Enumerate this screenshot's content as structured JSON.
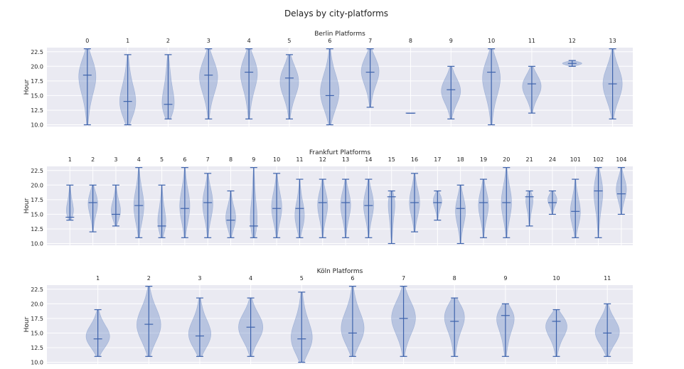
{
  "figure": {
    "title": "Delays by city-platforms"
  },
  "colors": {
    "background": "#eaeaf2",
    "grid": "#ffffff",
    "body": "#5c7fbf",
    "line": "#3e63ac"
  },
  "chart_data": [
    {
      "type": "violin",
      "title": "Berlin Platforms",
      "ylabel": "Hour",
      "ylim": [
        9.7,
        23.2
      ],
      "yticks": [
        10.0,
        12.5,
        15.0,
        17.5,
        20.0,
        22.5
      ],
      "ytick_labels": [
        "10.0",
        "12.5",
        "15.0",
        "17.5",
        "20.0",
        "22.5"
      ],
      "xtick_labels": [
        "0",
        "1",
        "2",
        "3",
        "4",
        "5",
        "6",
        "7",
        "8",
        "9",
        "10",
        "11",
        "12",
        "13"
      ],
      "violins": [
        {
          "min": 10,
          "max": 23,
          "median": 18.5,
          "peak": 19.5,
          "width": 0.48
        },
        {
          "min": 10,
          "max": 22,
          "median": 14,
          "peak": 12.5,
          "width": 0.48
        },
        {
          "min": 11,
          "max": 22,
          "median": 13.5,
          "peak": 11.5,
          "width": 0.48
        },
        {
          "min": 11,
          "max": 23,
          "median": 18.5,
          "peak": 19,
          "width": 0.48
        },
        {
          "min": 11,
          "max": 23,
          "median": 19,
          "peak": 20,
          "width": 0.48
        },
        {
          "min": 11,
          "max": 22,
          "median": 18,
          "peak": 18,
          "width": 0.48
        },
        {
          "min": 10,
          "max": 23,
          "median": 15,
          "peak": 15,
          "width": 0.48
        },
        {
          "min": 13,
          "max": 23,
          "median": 19,
          "peak": 20,
          "width": 0.48
        },
        {
          "min": 12,
          "max": 12,
          "median": 12,
          "peak": 12,
          "width": 0.24
        },
        {
          "min": 11,
          "max": 20,
          "median": 16,
          "peak": 16,
          "width": 0.48
        },
        {
          "min": 10,
          "max": 23,
          "median": 19,
          "peak": 19,
          "width": 0.48
        },
        {
          "min": 12,
          "max": 20,
          "median": 17,
          "peak": 17,
          "width": 0.48
        },
        {
          "min": 20,
          "max": 21,
          "median": 20.5,
          "peak": 20.5,
          "width": 0.48
        },
        {
          "min": 11,
          "max": 23,
          "median": 17,
          "peak": 17,
          "width": 0.48
        }
      ]
    },
    {
      "type": "violin",
      "title": "Frankfurt Platforms",
      "ylabel": "Hour",
      "ylim": [
        9.7,
        23.2
      ],
      "yticks": [
        10.0,
        12.5,
        15.0,
        17.5,
        20.0,
        22.5
      ],
      "ytick_labels": [
        "10.0",
        "12.5",
        "15.0",
        "17.5",
        "20.0",
        "22.5"
      ],
      "xtick_labels": [
        "1",
        "2",
        "3",
        "4",
        "5",
        "6",
        "7",
        "8",
        "9",
        "10",
        "11",
        "12",
        "13",
        "14",
        "15",
        "16",
        "17",
        "18",
        "19",
        "20",
        "21",
        "24",
        "101",
        "102",
        "104"
      ],
      "violins": [
        {
          "min": 14,
          "max": 20,
          "median": 14.5,
          "peak": 14.5,
          "width": 0.45
        },
        {
          "min": 12,
          "max": 20,
          "median": 17,
          "peak": 17.5,
          "width": 0.45
        },
        {
          "min": 13,
          "max": 20,
          "median": 15,
          "peak": 15,
          "width": 0.45
        },
        {
          "min": 11,
          "max": 23,
          "median": 16.5,
          "peak": 16,
          "width": 0.45
        },
        {
          "min": 11,
          "max": 20,
          "median": 13,
          "peak": 12.5,
          "width": 0.45
        },
        {
          "min": 11,
          "max": 23,
          "median": 16,
          "peak": 16,
          "width": 0.45
        },
        {
          "min": 11,
          "max": 22,
          "median": 17,
          "peak": 17,
          "width": 0.45
        },
        {
          "min": 11,
          "max": 19,
          "median": 14,
          "peak": 14,
          "width": 0.45
        },
        {
          "min": 11,
          "max": 23,
          "median": 13,
          "peak": 12,
          "width": 0.45
        },
        {
          "min": 11,
          "max": 22,
          "median": 16,
          "peak": 16,
          "width": 0.45
        },
        {
          "min": 11,
          "max": 21,
          "median": 16,
          "peak": 14,
          "width": 0.45
        },
        {
          "min": 11,
          "max": 21,
          "median": 17,
          "peak": 17,
          "width": 0.45
        },
        {
          "min": 11,
          "max": 21,
          "median": 17,
          "peak": 17,
          "width": 0.45
        },
        {
          "min": 11,
          "max": 21,
          "median": 16.5,
          "peak": 17,
          "width": 0.45
        },
        {
          "min": 10,
          "max": 19,
          "median": 18,
          "peak": 18.5,
          "width": 0.45
        },
        {
          "min": 12,
          "max": 22,
          "median": 17,
          "peak": 17,
          "width": 0.45
        },
        {
          "min": 14,
          "max": 19,
          "median": 17,
          "peak": 18,
          "width": 0.45
        },
        {
          "min": 10,
          "max": 20,
          "median": 16,
          "peak": 16,
          "width": 0.45
        },
        {
          "min": 11,
          "max": 21,
          "median": 17,
          "peak": 17,
          "width": 0.45
        },
        {
          "min": 11,
          "max": 23,
          "median": 17,
          "peak": 17,
          "width": 0.45
        },
        {
          "min": 13,
          "max": 19,
          "median": 18,
          "peak": 18.5,
          "width": 0.45
        },
        {
          "min": 15,
          "max": 19,
          "median": 17,
          "peak": 18,
          "width": 0.45
        },
        {
          "min": 11,
          "max": 21,
          "median": 15.5,
          "peak": 15,
          "width": 0.45
        },
        {
          "min": 11,
          "max": 23,
          "median": 19,
          "peak": 20,
          "width": 0.45
        },
        {
          "min": 15,
          "max": 23,
          "median": 18.5,
          "peak": 19.5,
          "width": 0.45
        }
      ]
    },
    {
      "type": "violin",
      "title": "Köln Platforms",
      "ylabel": "Hour",
      "ylim": [
        9.7,
        23.2
      ],
      "yticks": [
        10.0,
        12.5,
        15.0,
        17.5,
        20.0,
        22.5
      ],
      "ytick_labels": [
        "10.0",
        "12.5",
        "15.0",
        "17.5",
        "20.0",
        "22.5"
      ],
      "xtick_labels": [
        "1",
        "2",
        "3",
        "4",
        "5",
        "6",
        "7",
        "8",
        "9",
        "10",
        "11"
      ],
      "violins": [
        {
          "min": 11,
          "max": 19,
          "median": 14,
          "peak": 14,
          "width": 0.48
        },
        {
          "min": 11,
          "max": 23,
          "median": 16.5,
          "peak": 16,
          "width": 0.48
        },
        {
          "min": 11,
          "max": 21,
          "median": 14.5,
          "peak": 14,
          "width": 0.48
        },
        {
          "min": 11,
          "max": 21,
          "median": 16,
          "peak": 16,
          "width": 0.48
        },
        {
          "min": 10,
          "max": 22,
          "median": 14,
          "peak": 13,
          "width": 0.48
        },
        {
          "min": 11,
          "max": 23,
          "median": 15,
          "peak": 15,
          "width": 0.48
        },
        {
          "min": 11,
          "max": 23,
          "median": 17.5,
          "peak": 18,
          "width": 0.48
        },
        {
          "min": 11,
          "max": 21,
          "median": 17,
          "peak": 19,
          "width": 0.48
        },
        {
          "min": 11,
          "max": 20,
          "median": 18,
          "peak": 19,
          "width": 0.48
        },
        {
          "min": 11,
          "max": 19,
          "median": 17,
          "peak": 17,
          "width": 0.48
        },
        {
          "min": 11,
          "max": 20,
          "median": 15,
          "peak": 15,
          "width": 0.48
        }
      ]
    }
  ]
}
